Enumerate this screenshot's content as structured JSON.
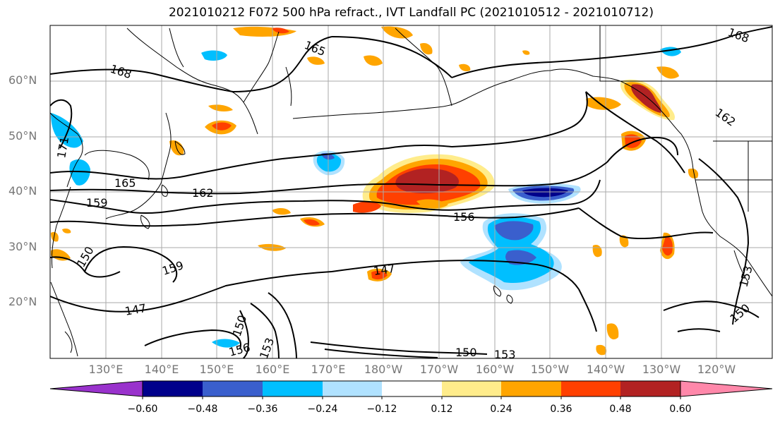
{
  "title": "2021010212 F072 500 hPa refract., IVT Landfall PC (2021010512 - 2021010712)",
  "lat_labels": [
    "60°N",
    "50°N",
    "40°N",
    "30°N",
    "20°N"
  ],
  "lon_labels": [
    "130°E",
    "140°E",
    "150°E",
    "160°E",
    "170°E",
    "180°W",
    "170°W",
    "160°W",
    "150°W",
    "140°W",
    "130°W",
    "120°W"
  ],
  "contour_labels": [
    "165",
    "168",
    "171",
    "165",
    "162",
    "159",
    "156",
    "150",
    "159",
    "147",
    "147",
    "150",
    "156",
    "153",
    "150",
    "153",
    "150",
    "168",
    "162"
  ],
  "colorbar": {
    "tick_labels": [
      "−0.60",
      "−0.48",
      "−0.36",
      "−0.24",
      "−0.12",
      "0.12",
      "0.24",
      "0.36",
      "0.48",
      "0.60"
    ],
    "colors": [
      "#9932cc",
      "#00008b",
      "#3a5fcd",
      "#00bfff",
      "#b0e2ff",
      "#ffffff",
      "#ffec8b",
      "#ffa500",
      "#ff4000",
      "#b22222",
      "#ff88aa"
    ]
  }
}
